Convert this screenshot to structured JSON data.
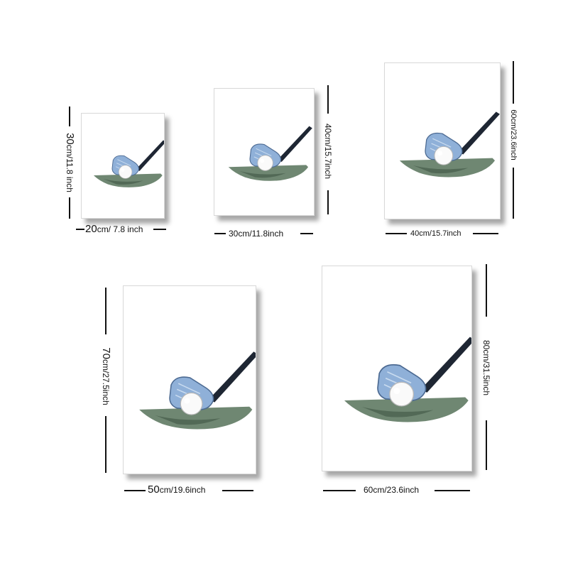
{
  "sizes": [
    {
      "width_num": "20",
      "width_unit": "cm/ 7.8 inch",
      "height_num": "30",
      "height_unit": "cm/11.8 inch"
    },
    {
      "width_label": "30cm/11.8inch",
      "height_label": "40cm/15.7inch"
    },
    {
      "width_label": "40cm/15.7inch",
      "height_label": "60cm/23.6inch"
    },
    {
      "width_num": "50",
      "width_unit": "cm/19.6inch",
      "height_num": "70",
      "height_unit": "cm/27.5inch"
    },
    {
      "width_label": "60cm/23.6inch",
      "height_label": "80cm/31.5inch"
    }
  ],
  "colors": {
    "club_head": "#8fb0d8",
    "club_shaft": "#1e2633",
    "grass": "#5f7a63",
    "ball": "#fafafa"
  }
}
